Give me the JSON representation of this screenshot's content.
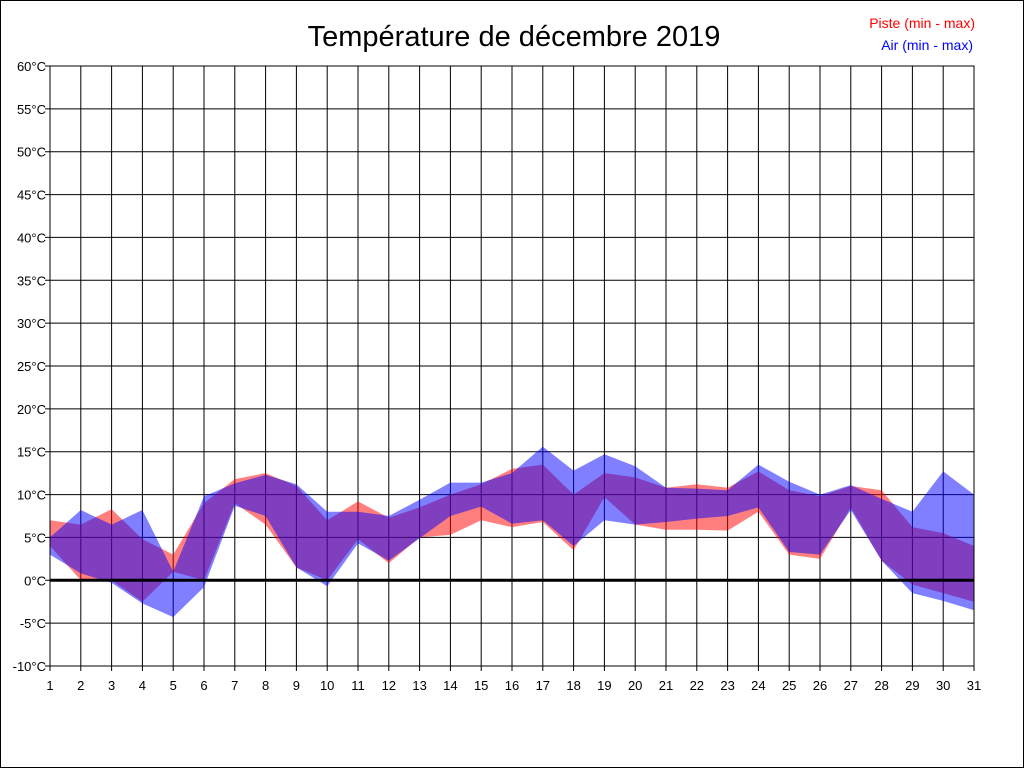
{
  "chart_data": {
    "type": "area",
    "title": "Température de décembre 2019",
    "xlabel": "",
    "ylabel": "",
    "x": [
      1,
      2,
      3,
      4,
      5,
      6,
      7,
      8,
      9,
      10,
      11,
      12,
      13,
      14,
      15,
      16,
      17,
      18,
      19,
      20,
      21,
      22,
      23,
      24,
      25,
      26,
      27,
      28,
      29,
      30,
      31
    ],
    "ylim": [
      -10,
      60
    ],
    "yticks": [
      -10,
      -5,
      0,
      5,
      10,
      15,
      20,
      25,
      30,
      35,
      40,
      45,
      50,
      55,
      60
    ],
    "ytick_suffix": "°C",
    "grid": true,
    "legend_position": "top-right",
    "series": [
      {
        "name": "Piste (min - max)",
        "color": "#ff0000",
        "min": [
          4,
          0,
          0,
          -2.5,
          1,
          0,
          9,
          6.5,
          1.5,
          0,
          4.8,
          2,
          5,
          5.3,
          7,
          6.2,
          6.8,
          3.5,
          9.7,
          6.5,
          5.9,
          5.9,
          5.8,
          8,
          3,
          2.5,
          8.5,
          2.3,
          -0.5,
          -1.5,
          -2.5
        ],
        "max": [
          7,
          6.5,
          8.3,
          4.8,
          3,
          9,
          11.8,
          12.5,
          11,
          7,
          9.2,
          7.3,
          8.5,
          10,
          11.2,
          13,
          13.5,
          10,
          12.5,
          12,
          10.8,
          11.2,
          10.8,
          12.7,
          10.5,
          9.8,
          11,
          10.5,
          6.2,
          5.5,
          4
        ]
      },
      {
        "name": "Air (min - max)",
        "color": "#0000ff",
        "min": [
          3,
          0.8,
          -0.3,
          -2.7,
          -4.3,
          -0.8,
          8.7,
          7.5,
          1.5,
          -0.7,
          4.3,
          2.3,
          4.9,
          7.5,
          8.6,
          6.6,
          7,
          4,
          7,
          6.5,
          6.8,
          7.2,
          7.5,
          8.5,
          3.3,
          3,
          8.2,
          2.3,
          -1.5,
          -2.4,
          -3.5
        ],
        "max": [
          5,
          8.2,
          6.5,
          8.2,
          1,
          9.8,
          11.3,
          12.3,
          11.2,
          8,
          8,
          7.5,
          9.4,
          11.4,
          11.4,
          12.5,
          15.6,
          12.8,
          14.7,
          13.3,
          10.8,
          10.7,
          10.5,
          13.5,
          11.5,
          10,
          11.1,
          9.5,
          8,
          12.7,
          10
        ]
      }
    ]
  }
}
